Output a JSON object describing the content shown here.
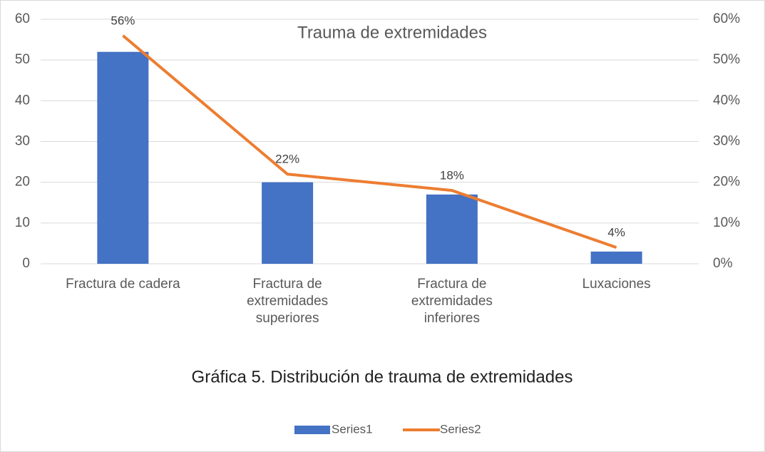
{
  "chart_data": {
    "type": "bar",
    "title": "Trauma de extremidades",
    "subtitle": "Gráfica 5. Distribución de trauma de extremidades",
    "categories": [
      "Fractura de cadera",
      "Fractura de extremidades superiores",
      "Fractura de extremidades inferiores",
      "Luxaciones"
    ],
    "series": [
      {
        "name": "Series1",
        "type": "bar",
        "color": "#4472c4",
        "values": [
          52,
          20,
          17,
          3
        ]
      },
      {
        "name": "Series2",
        "type": "line",
        "axis": "y2",
        "color": "#ed7d31",
        "values": [
          56,
          22,
          18,
          4
        ],
        "value_labels": [
          "56%",
          "22%",
          "18%",
          "4%"
        ]
      }
    ],
    "ylim": [
      0,
      60
    ],
    "yticks": [
      0,
      10,
      20,
      30,
      40,
      50,
      60
    ],
    "y2lim": [
      0,
      60
    ],
    "y2ticks": [
      {
        "value": 0,
        "label": "0%"
      },
      {
        "value": 10,
        "label": "10%"
      },
      {
        "value": 20,
        "label": "20%"
      },
      {
        "value": 30,
        "label": "30%"
      },
      {
        "value": 40,
        "label": "40%"
      },
      {
        "value": 50,
        "label": "50%"
      },
      {
        "value": 60,
        "label": "60%"
      }
    ],
    "grid": true,
    "legend": "bottom"
  }
}
